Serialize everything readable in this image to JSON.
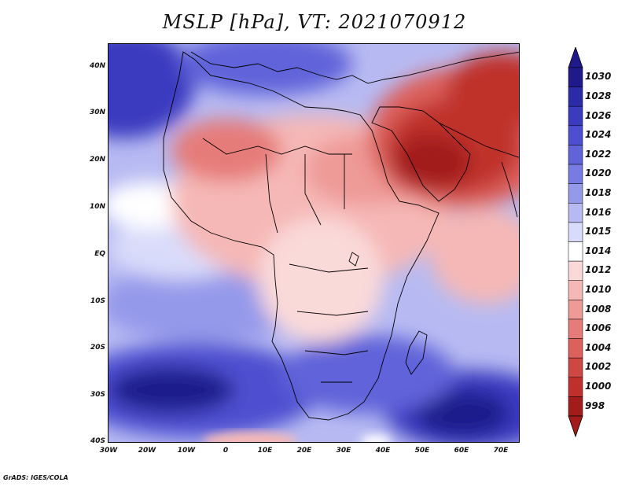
{
  "title": "MSLP [hPa], VT: 2021070912",
  "credit": "GrADS: IGES/COLA",
  "map": {
    "lat_labels": [
      "40N",
      "30N",
      "20N",
      "10N",
      "EQ",
      "10S",
      "20S",
      "30S",
      "40S"
    ],
    "lon_labels": [
      "30W",
      "20W",
      "10W",
      "0",
      "10E",
      "20E",
      "30E",
      "40E",
      "50E",
      "60E",
      "70E"
    ]
  },
  "colorbar": {
    "labels": [
      "1030",
      "1028",
      "1026",
      "1024",
      "1022",
      "1020",
      "1018",
      "1016",
      "1015",
      "1014",
      "1012",
      "1010",
      "1008",
      "1006",
      "1004",
      "1002",
      "1000",
      "998"
    ],
    "colors": [
      "#1f1a8c",
      "#2b2aa8",
      "#3b3bc0",
      "#4d4fd0",
      "#6164d9",
      "#787ce2",
      "#9599ea",
      "#b7baf2",
      "#d9dbfa",
      "#ffffff",
      "#fad9d9",
      "#f5b8b6",
      "#ee9a97",
      "#e67c79",
      "#dc605c",
      "#cf4743",
      "#bf302c",
      "#a31c1c"
    ]
  }
}
